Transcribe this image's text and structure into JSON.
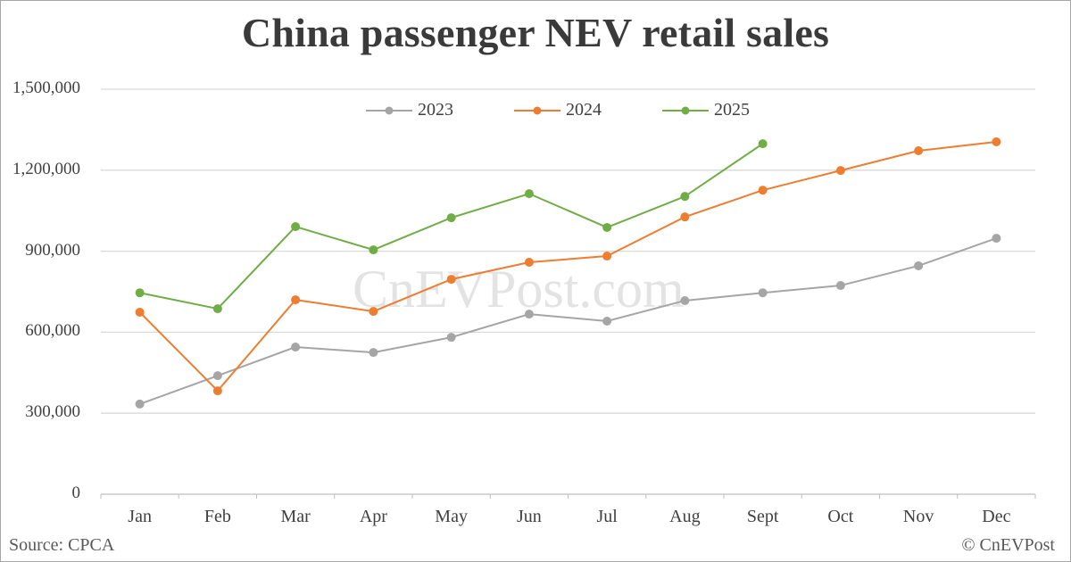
{
  "title": "China passenger NEV retail sales",
  "watermark": "CnEVPost.com",
  "footer": {
    "source": "Source: CPCA",
    "copyright": "© CnEVPost"
  },
  "colors": {
    "2023": "#a5a5a5",
    "2024": "#ed7d31",
    "2025": "#70ad47",
    "grid": "#d9d9d9",
    "text": "#404040"
  },
  "legend": [
    {
      "label": "2023",
      "color": "#a5a5a5"
    },
    {
      "label": "2024",
      "color": "#ed7d31"
    },
    {
      "label": "2025",
      "color": "#70ad47"
    }
  ],
  "y_ticks": [
    "0",
    "300,000",
    "600,000",
    "900,000",
    "1,200,000",
    "1,500,000"
  ],
  "chart_data": {
    "type": "line",
    "title": "China passenger NEV retail sales",
    "xlabel": "",
    "ylabel": "",
    "categories": [
      "Jan",
      "Feb",
      "Mar",
      "Apr",
      "May",
      "Jun",
      "Jul",
      "Aug",
      "Sept",
      "Oct",
      "Nov",
      "Dec"
    ],
    "series": [
      {
        "name": "2023",
        "color": "#a5a5a5",
        "values": [
          334000,
          439000,
          545000,
          525000,
          581000,
          667000,
          641000,
          717000,
          746000,
          773000,
          846000,
          948000
        ]
      },
      {
        "name": "2024",
        "color": "#ed7d31",
        "values": [
          674000,
          383000,
          720000,
          677000,
          796000,
          859000,
          882000,
          1027000,
          1126000,
          1199000,
          1272000,
          1305000
        ]
      },
      {
        "name": "2025",
        "color": "#70ad47",
        "values": [
          746000,
          687000,
          991000,
          905000,
          1024000,
          1113000,
          988000,
          1103000,
          1298000,
          null,
          null,
          null
        ]
      }
    ],
    "ylim": [
      0,
      1500000
    ],
    "y_ticks": [
      0,
      300000,
      600000,
      900000,
      1200000,
      1500000
    ],
    "grid": true,
    "legend_position": "top",
    "source": "Source: CPCA",
    "annotations": [
      "CnEVPost.com (watermark)",
      "© CnEVPost"
    ]
  }
}
